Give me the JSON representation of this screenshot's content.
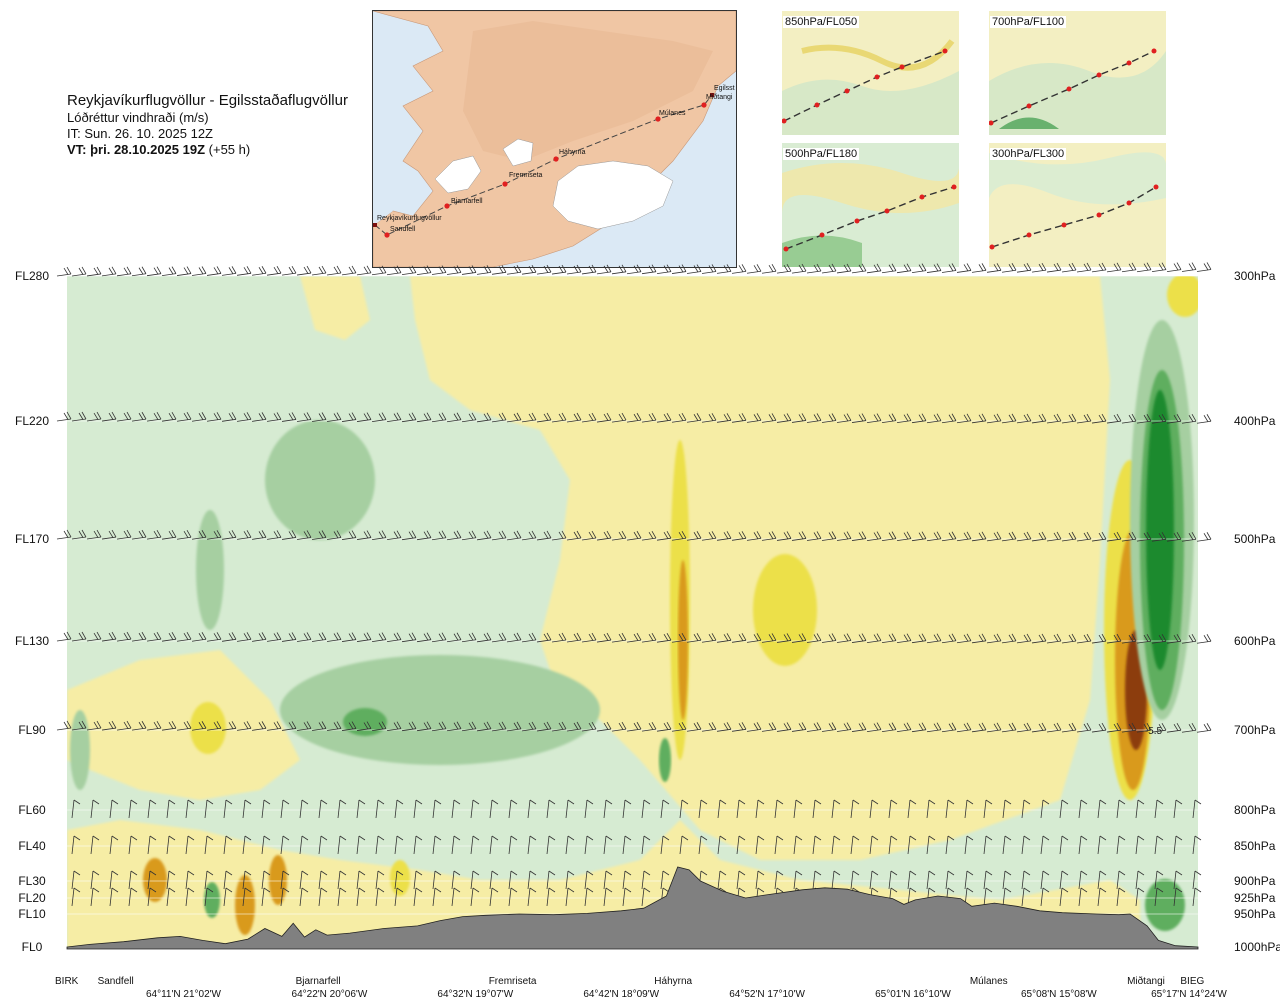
{
  "header": {
    "title": "Reykjavíkurflugvöllur - Egilsstaðaflugvöllur",
    "subtitle": "Lóðréttur vindhraði (m/s)",
    "it_label": "IT: Sun. 26. 10. 2025 12Z",
    "vt_bold": "VT: þri. 28.10.2025 19Z",
    "vt_rest": " (+55 h)"
  },
  "map": {
    "colors": {
      "sea": "#dbe9f5",
      "land": "#f0c6a4",
      "ice": "#ffffff",
      "route": "#444444",
      "point": "#e02020"
    },
    "waypoints": [
      "Reykjavíkurflugvöllur",
      "Sandfell",
      "Bjarnarfell",
      "Fremriseta",
      "Háhyrna",
      "Múlanes",
      "Miðtangi",
      "Egilsst"
    ]
  },
  "thumbnails": [
    {
      "label": "850hPa/FL050"
    },
    {
      "label": "700hPa/FL100"
    },
    {
      "label": "500hPa/FL180"
    },
    {
      "label": "300hPa/FL300"
    }
  ],
  "chart_data": {
    "type": "heatmap",
    "left_axis": [
      {
        "label": "FL280",
        "hpa": 300
      },
      {
        "label": "FL220",
        "hpa": 400
      },
      {
        "label": "FL170",
        "hpa": 500
      },
      {
        "label": "FL130",
        "hpa": 600
      },
      {
        "label": "FL90",
        "hpa": 700
      },
      {
        "label": "FL60",
        "hpa": 800
      },
      {
        "label": "FL40",
        "hpa": 850
      },
      {
        "label": "FL30",
        "hpa": 900
      },
      {
        "label": "FL20",
        "hpa": 925
      },
      {
        "label": "FL10",
        "hpa": 950
      },
      {
        "label": "FL0",
        "hpa": 1000
      }
    ],
    "right_axis": [
      {
        "label": "300hPa",
        "hpa": 300
      },
      {
        "label": "400hPa",
        "hpa": 400
      },
      {
        "label": "500hPa",
        "hpa": 500
      },
      {
        "label": "600hPa",
        "hpa": 600
      },
      {
        "label": "700hPa",
        "hpa": 700
      },
      {
        "label": "800hPa",
        "hpa": 800
      },
      {
        "label": "850hPa",
        "hpa": 850
      },
      {
        "label": "900hPa",
        "hpa": 900
      },
      {
        "label": "925hPa",
        "hpa": 925
      },
      {
        "label": "950hPa",
        "hpa": 950
      },
      {
        "label": "1000hPa",
        "hpa": 1000
      }
    ],
    "pressure_range": [
      300,
      1000
    ],
    "route_range": [
      0,
      100
    ],
    "stations": [
      {
        "name": "BIRK",
        "pos": 0
      },
      {
        "name": "Sandfell",
        "pos": 4.3
      },
      {
        "name": "Bjarnarfell",
        "pos": 22.2
      },
      {
        "name": "Fremriseta",
        "pos": 39.4
      },
      {
        "name": "Háhyrna",
        "pos": 53.6
      },
      {
        "name": "Múlanes",
        "pos": 81.5
      },
      {
        "name": "Miðtangi",
        "pos": 95.4
      },
      {
        "name": "BIEG",
        "pos": 99.5
      }
    ],
    "coordinates": [
      {
        "label": "64°11'N 21°02'W",
        "pos": 10.3
      },
      {
        "label": "64°22'N 20°06'W",
        "pos": 23.2
      },
      {
        "label": "64°32'N 19°07'W",
        "pos": 36.1
      },
      {
        "label": "64°42'N 18°09'W",
        "pos": 49.0
      },
      {
        "label": "64°52'N 17°10'W",
        "pos": 61.9
      },
      {
        "label": "65°01'N 16°10'W",
        "pos": 74.8
      },
      {
        "label": "65°08'N 15°08'W",
        "pos": 87.7
      },
      {
        "label": "65°17'N 14°24'W",
        "pos": 99.2
      }
    ],
    "annotation": {
      "text": "-5.5",
      "pos": 95.3,
      "hpa": 700
    },
    "terrain": [
      [
        0,
        1000
      ],
      [
        2,
        996
      ],
      [
        5,
        992
      ],
      [
        8,
        986
      ],
      [
        10,
        984
      ],
      [
        12,
        990
      ],
      [
        14,
        995
      ],
      [
        16,
        988
      ],
      [
        17.5,
        972
      ],
      [
        19,
        984
      ],
      [
        20,
        964
      ],
      [
        21,
        985
      ],
      [
        22,
        974
      ],
      [
        23,
        982
      ],
      [
        25,
        979
      ],
      [
        28,
        972
      ],
      [
        31,
        968
      ],
      [
        33,
        960
      ],
      [
        35,
        954
      ],
      [
        37,
        952
      ],
      [
        40,
        950
      ],
      [
        43,
        951
      ],
      [
        46,
        949
      ],
      [
        49,
        945
      ],
      [
        51,
        941
      ],
      [
        53,
        922
      ],
      [
        54,
        880
      ],
      [
        55,
        884
      ],
      [
        56,
        900
      ],
      [
        58,
        915
      ],
      [
        60,
        925
      ],
      [
        62,
        920
      ],
      [
        65,
        913
      ],
      [
        67,
        910
      ],
      [
        69,
        912
      ],
      [
        71,
        920
      ],
      [
        73,
        926
      ],
      [
        74,
        935
      ],
      [
        75,
        928
      ],
      [
        77,
        922
      ],
      [
        79,
        926
      ],
      [
        80,
        938
      ],
      [
        82,
        933
      ],
      [
        84,
        938
      ],
      [
        86,
        945
      ],
      [
        88,
        948
      ],
      [
        91,
        950
      ],
      [
        93,
        951
      ],
      [
        94,
        950
      ],
      [
        95.5,
        968
      ],
      [
        96.5,
        990
      ],
      [
        98,
        998
      ],
      [
        100,
        1000
      ]
    ],
    "colors": {
      "neg_light": "#d6ebd2",
      "neg_mid": "#a6cfa1",
      "neg_dark": "#5fae5f",
      "neg_deep": "#1f8a2e",
      "pos_light": "#f6eda5",
      "pos_mid": "#ece04a",
      "pos_dark": "#d99a1a",
      "pos_deep": "#8c3d10",
      "terrain": "#808080"
    }
  }
}
